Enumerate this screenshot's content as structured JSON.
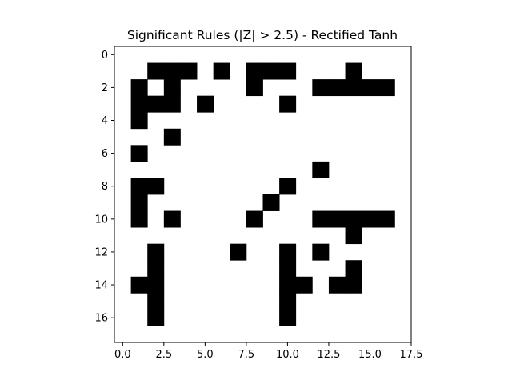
{
  "chart_data": {
    "type": "heatmap",
    "title": "Significant Rules (|Z| > 2.5) - Rectified Tanh",
    "xlabel": "",
    "ylabel": "",
    "xlim": [
      -0.5,
      17.5
    ],
    "ylim": [
      17.5,
      -0.5
    ],
    "x_ticks": [
      0.0,
      2.5,
      5.0,
      7.5,
      10.0,
      12.5,
      15.0,
      17.5
    ],
    "x_tick_labels": [
      "0.0",
      "2.5",
      "5.0",
      "7.5",
      "10.0",
      "12.5",
      "15.0",
      "17.5"
    ],
    "y_ticks": [
      0,
      2,
      4,
      6,
      8,
      10,
      12,
      14,
      16
    ],
    "y_tick_labels": [
      "0",
      "2",
      "4",
      "6",
      "8",
      "10",
      "12",
      "14",
      "16"
    ],
    "grid": false,
    "colors": {
      "significant": "#000000",
      "not_significant": "#ffffff"
    },
    "rows": 18,
    "cols": 18,
    "cells": [
      [
        1,
        2
      ],
      [
        1,
        3
      ],
      [
        1,
        4
      ],
      [
        1,
        6
      ],
      [
        1,
        8
      ],
      [
        1,
        9
      ],
      [
        1,
        10
      ],
      [
        1,
        14
      ],
      [
        2,
        1
      ],
      [
        2,
        3
      ],
      [
        2,
        8
      ],
      [
        2,
        12
      ],
      [
        2,
        13
      ],
      [
        2,
        14
      ],
      [
        2,
        15
      ],
      [
        2,
        16
      ],
      [
        3,
        1
      ],
      [
        3,
        2
      ],
      [
        3,
        3
      ],
      [
        3,
        5
      ],
      [
        3,
        10
      ],
      [
        4,
        1
      ],
      [
        5,
        3
      ],
      [
        6,
        1
      ],
      [
        7,
        12
      ],
      [
        8,
        1
      ],
      [
        8,
        2
      ],
      [
        8,
        10
      ],
      [
        9,
        1
      ],
      [
        9,
        9
      ],
      [
        10,
        1
      ],
      [
        10,
        3
      ],
      [
        10,
        8
      ],
      [
        10,
        12
      ],
      [
        10,
        13
      ],
      [
        10,
        14
      ],
      [
        10,
        15
      ],
      [
        10,
        16
      ],
      [
        11,
        14
      ],
      [
        12,
        2
      ],
      [
        12,
        7
      ],
      [
        12,
        10
      ],
      [
        12,
        12
      ],
      [
        13,
        2
      ],
      [
        13,
        10
      ],
      [
        13,
        14
      ],
      [
        14,
        1
      ],
      [
        14,
        2
      ],
      [
        14,
        10
      ],
      [
        14,
        11
      ],
      [
        14,
        13
      ],
      [
        14,
        14
      ],
      [
        15,
        2
      ],
      [
        15,
        10
      ],
      [
        16,
        2
      ],
      [
        16,
        10
      ]
    ]
  }
}
